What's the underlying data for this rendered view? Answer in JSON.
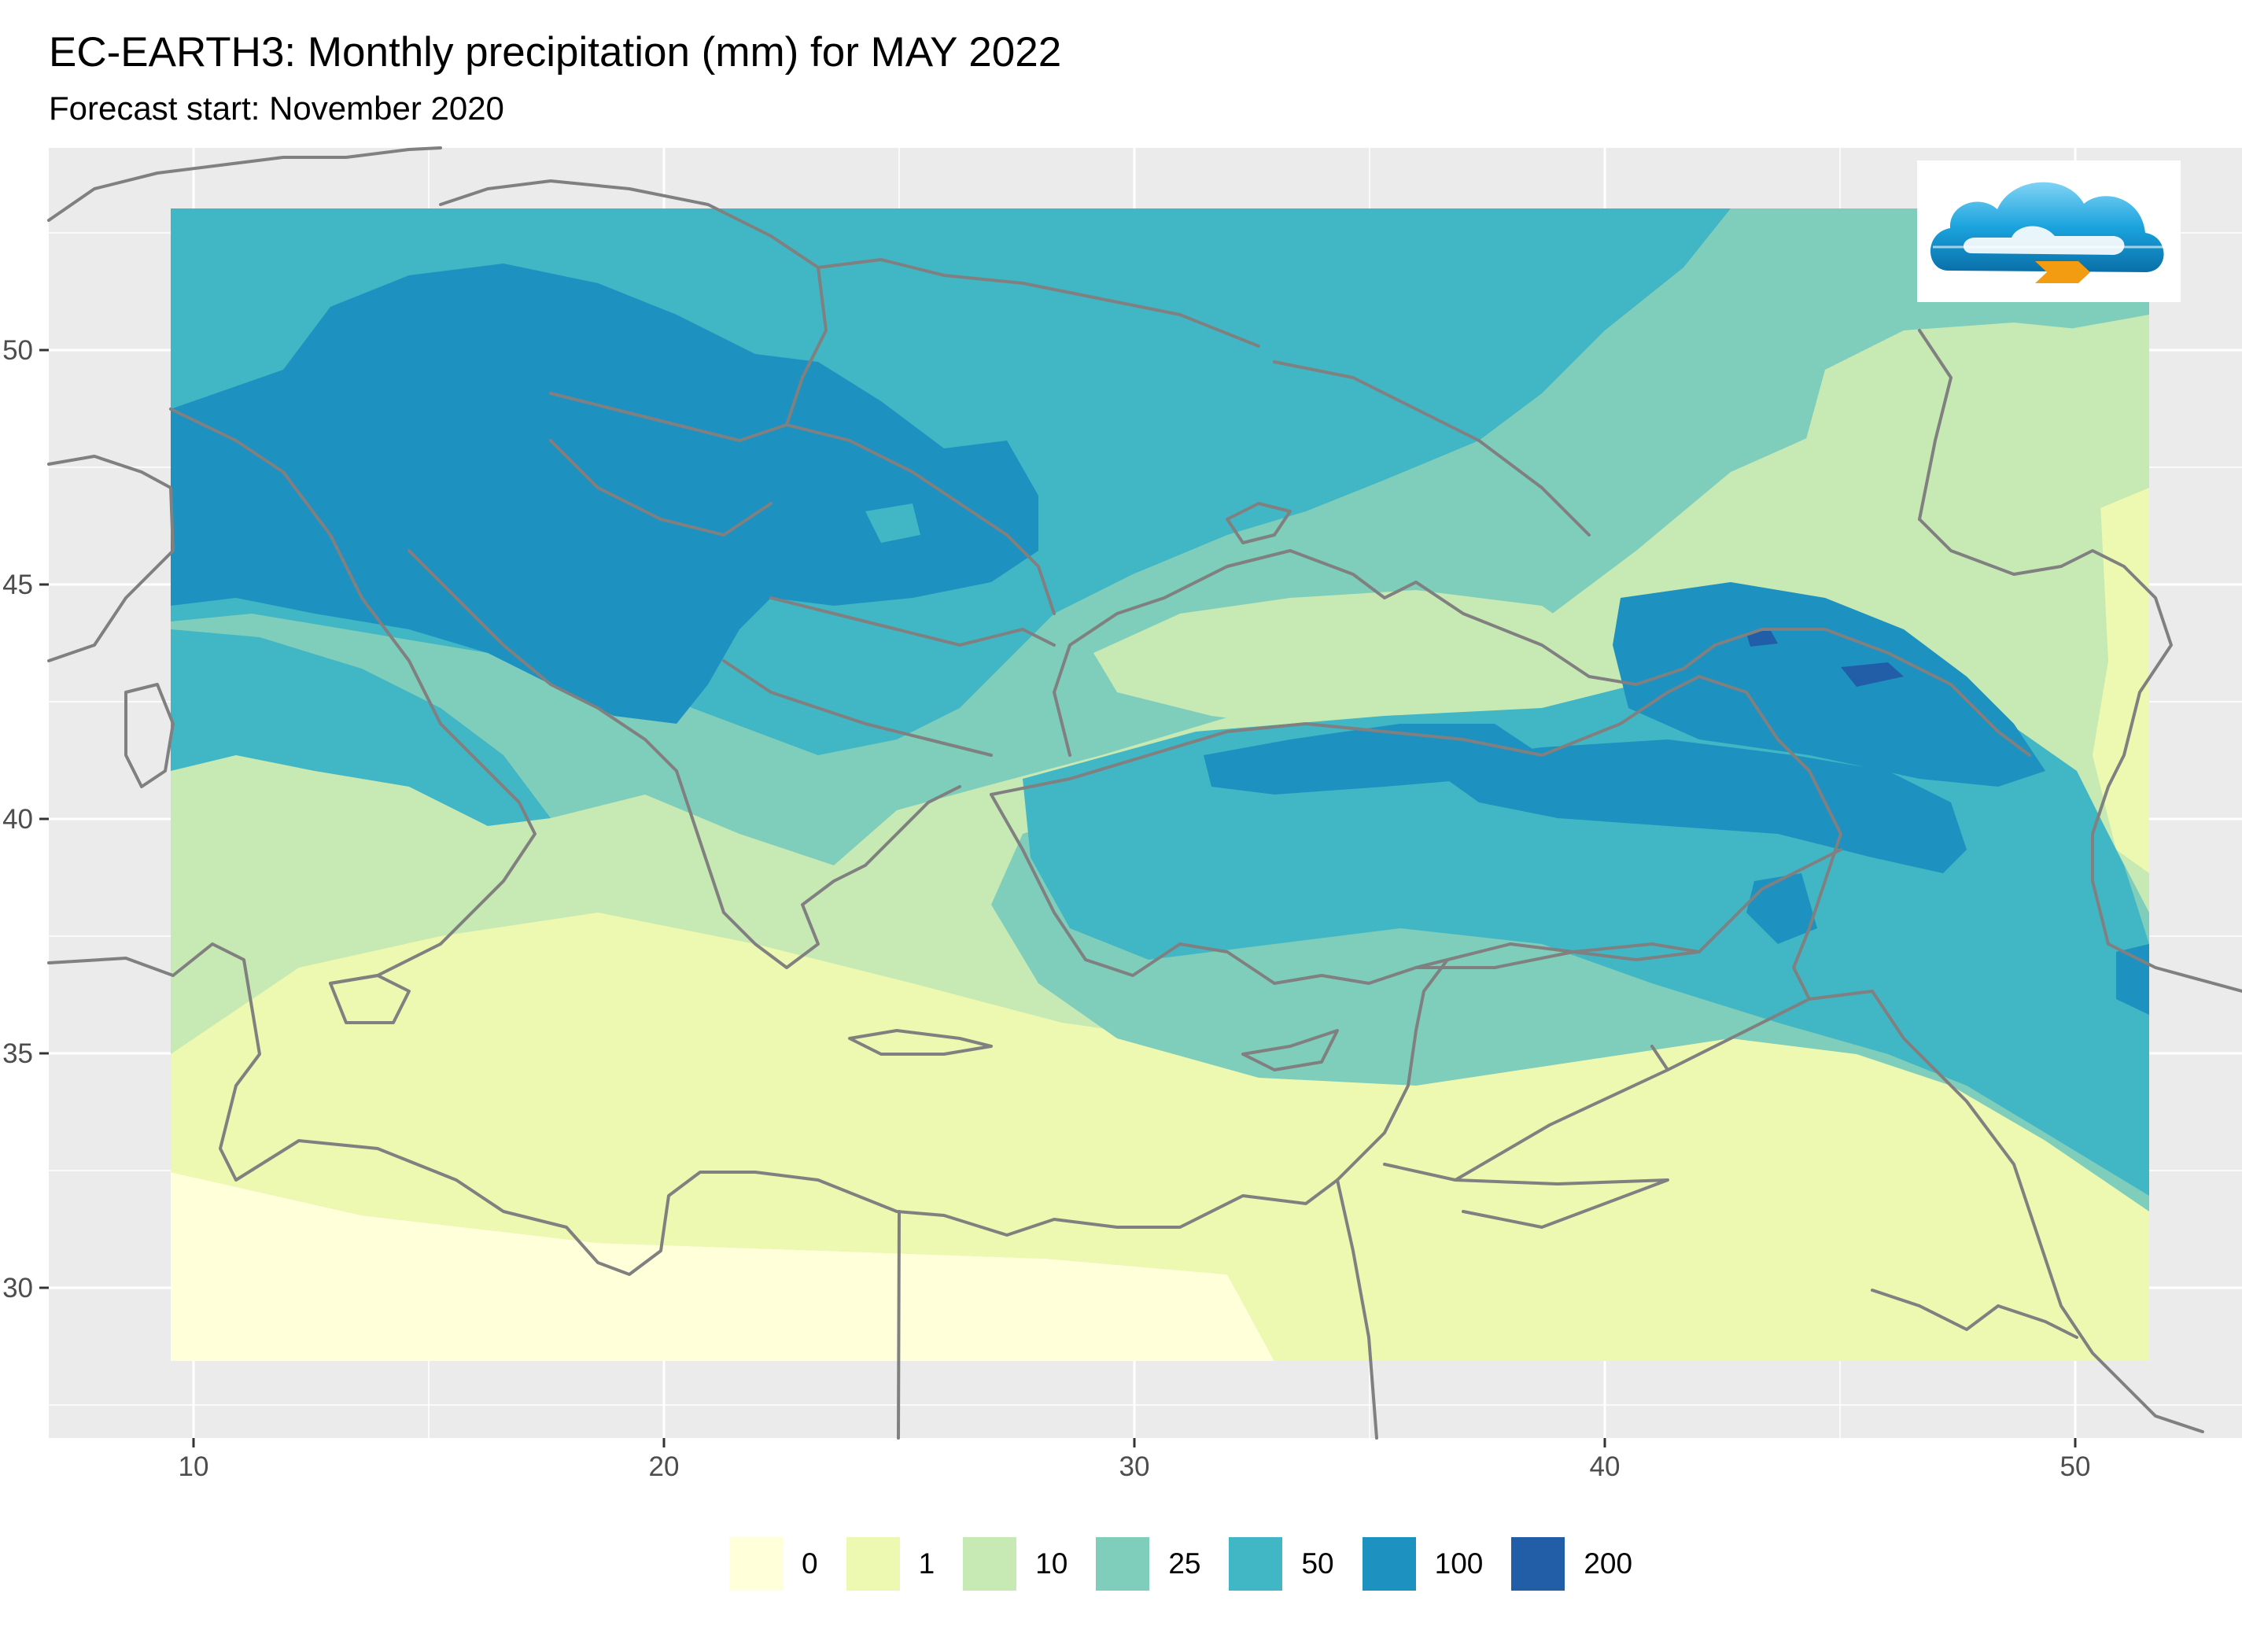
{
  "title": "EC-EARTH3: Monthly precipitation (mm) for MAY 2022",
  "subtitle": "Forecast start: November 2020",
  "colors": {
    "panel_background": "#ebebeb",
    "gridline": "#ffffff",
    "borders": "#808080",
    "bins": [
      "#ffffd9",
      "#edf8b1",
      "#c7e9b4",
      "#7fcdbb",
      "#41b6c4",
      "#1d91c0",
      "#225ea8"
    ]
  },
  "legend": {
    "items": [
      {
        "label": "0",
        "color": "#ffffd9"
      },
      {
        "label": "1",
        "color": "#edf8b1"
      },
      {
        "label": "10",
        "color": "#c7e9b4"
      },
      {
        "label": "25",
        "color": "#7fcdbb"
      },
      {
        "label": "50",
        "color": "#41b6c4"
      },
      {
        "label": "100",
        "color": "#1d91c0"
      },
      {
        "label": "200",
        "color": "#225ea8"
      }
    ]
  },
  "axes": {
    "x": {
      "range_deg_lon": [
        7,
        54
      ],
      "ticks": [
        "10",
        "20",
        "30",
        "40",
        "50"
      ]
    },
    "y": {
      "range_deg_lat": [
        27,
        54.5
      ],
      "ticks": [
        "30",
        "35",
        "40",
        "45",
        "50"
      ]
    }
  },
  "data_extent": {
    "lon": [
      9.5,
      51.5
    ],
    "lat": [
      28.5,
      53
    ]
  },
  "logo": {
    "icon": "cloud-arrow-logo-icon"
  }
}
